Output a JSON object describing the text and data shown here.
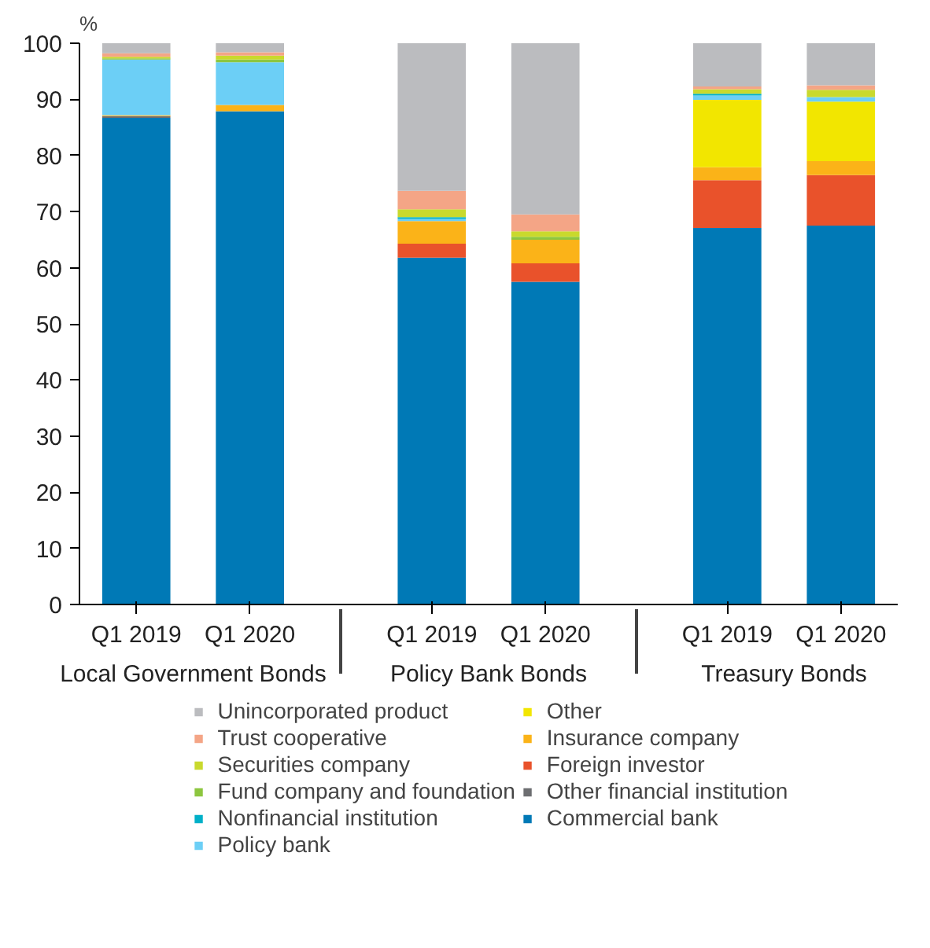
{
  "chart_data": {
    "type": "bar",
    "stacked": true,
    "ylabel": "%",
    "categories": [
      "Q1 2019",
      "Q1 2020",
      "Q1 2019",
      "Q1 2020",
      "Q1 2019",
      "Q1 2020"
    ],
    "annotations": [
      "Local Government Bonds",
      "Policy Bank Bonds",
      "Treasury Bonds"
    ],
    "series": [
      {
        "name": "Commercial bank",
        "color": "#0079b6",
        "values": [
          86.7,
          87.9,
          61.8,
          57.5,
          67.1,
          67.5
        ]
      },
      {
        "name": "Other financial institution",
        "color": "#6d6e71",
        "values": [
          0.3,
          0,
          0,
          0,
          0,
          0
        ]
      },
      {
        "name": "Foreign investor",
        "color": "#e9522b",
        "values": [
          0,
          0,
          2.5,
          3.3,
          8.5,
          9.0
        ]
      },
      {
        "name": "Insurance company",
        "color": "#fbb318",
        "values": [
          0.2,
          1.1,
          4.0,
          4.2,
          2.3,
          2.5
        ]
      },
      {
        "name": "Other",
        "color": "#f2e600",
        "values": [
          0,
          0,
          0,
          0,
          12.0,
          10.6
        ]
      },
      {
        "name": "Policy bank",
        "color": "#6ccff6",
        "values": [
          9.9,
          7.6,
          0.4,
          0,
          0.8,
          0.8
        ]
      },
      {
        "name": "Nonfinancial institution",
        "color": "#00b0c8",
        "values": [
          0,
          0,
          0.3,
          0,
          0.3,
          0
        ]
      },
      {
        "name": "Fund company and foundation",
        "color": "#8dc63f",
        "values": [
          0.2,
          0.5,
          0,
          0.5,
          0,
          0
        ]
      },
      {
        "name": "Securities company",
        "color": "#c9d92d",
        "values": [
          0.3,
          0.7,
          1.4,
          1.0,
          0.8,
          1.3
        ]
      },
      {
        "name": "Trust cooperative",
        "color": "#f4a586",
        "values": [
          0.6,
          0.6,
          3.3,
          3.0,
          0.5,
          0.8
        ]
      },
      {
        "name": "Unincorporated product",
        "color": "#bbbcbf",
        "values": [
          1.8,
          1.6,
          26.3,
          30.5,
          7.7,
          7.5
        ]
      }
    ],
    "ylim": [
      0,
      100
    ],
    "yticks": [
      0,
      10,
      20,
      30,
      40,
      50,
      60,
      70,
      80,
      90,
      100
    ],
    "grid": false,
    "legend": "bottom"
  }
}
